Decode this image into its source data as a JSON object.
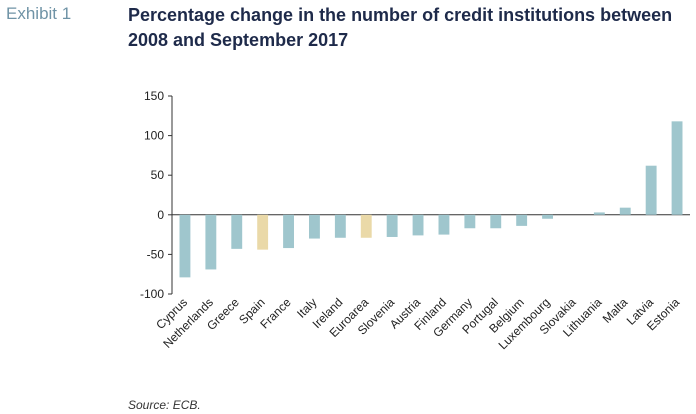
{
  "exhibit_label": "Exhibit 1",
  "source": "Source: ECB.",
  "colors": {
    "bar": "#9fc6cd",
    "highlight": "#ead9a8",
    "axis": "#333333",
    "title": "#1e2a4a",
    "exhibit": "#6f93a6"
  },
  "chart_data": {
    "type": "bar",
    "title": "Percentage change in the number of credit institutions between 2008 and September 2017",
    "xlabel": "",
    "ylabel": "",
    "ylim": [
      -100,
      150
    ],
    "yticks": [
      150,
      100,
      50,
      0,
      -50,
      -100
    ],
    "grid": false,
    "categories": [
      "Cyprus",
      "Netherlands",
      "Greece",
      "Spain",
      "France",
      "Italy",
      "Ireland",
      "Euroarea",
      "Slovenia",
      "Austria",
      "Finland",
      "Germany",
      "Portugal",
      "Belgium",
      "Luxembourg",
      "Slovakia",
      "Lithuania",
      "Malta",
      "Latvia",
      "Estonia"
    ],
    "values": [
      -79,
      -69,
      -43,
      -44,
      -42,
      -30,
      -29,
      -29,
      -28,
      -26,
      -25,
      -17,
      -17,
      -14,
      -5,
      0,
      3,
      9,
      62,
      118
    ],
    "highlighted": [
      "Spain",
      "Euroarea"
    ]
  }
}
